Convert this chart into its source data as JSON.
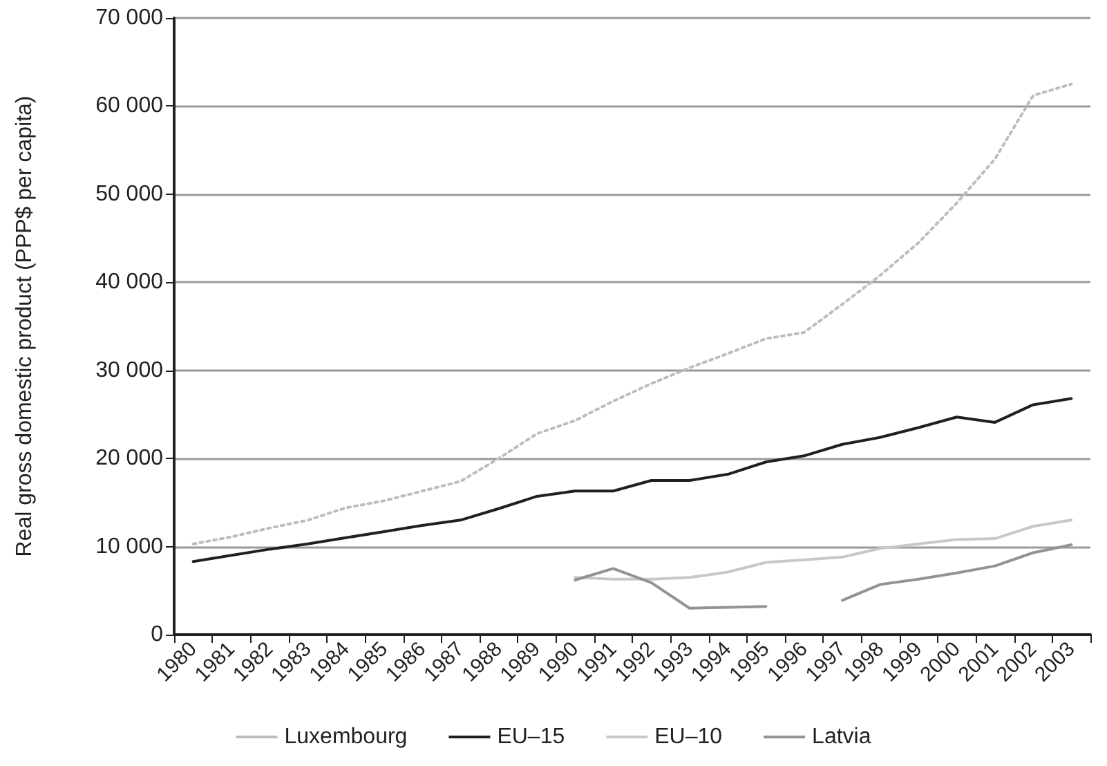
{
  "chart_data": {
    "type": "line",
    "ylabel": "Real gross domestic product (PPP$ per capita)",
    "categories": [
      "1980",
      "1981",
      "1982",
      "1983",
      "1984",
      "1985",
      "1986",
      "1987",
      "1988",
      "1989",
      "1990",
      "1991",
      "1992",
      "1993",
      "1994",
      "1995",
      "1996",
      "1997",
      "1998",
      "1999",
      "2000",
      "2001",
      "2002",
      "2003"
    ],
    "series": [
      {
        "name": "Luxembourg",
        "color": "#bdbdbd",
        "line_style": "dotted",
        "values": [
          10300,
          11100,
          12100,
          13000,
          14400,
          15200,
          16300,
          17400,
          20000,
          22800,
          24300,
          26500,
          28500,
          30300,
          31900,
          33600,
          34300,
          37500,
          40800,
          44500,
          49000,
          54000,
          61200,
          62500
        ]
      },
      {
        "name": "EU–15",
        "color": "#231f20",
        "line_style": "solid",
        "values": [
          8300,
          9000,
          9700,
          10300,
          11000,
          11700,
          12400,
          13000,
          14300,
          15700,
          16300,
          16300,
          17500,
          17500,
          18200,
          19600,
          20300,
          21600,
          22400,
          23500,
          24700,
          24100,
          26100,
          26800
        ]
      },
      {
        "name": "EU–10",
        "color": "#c8c8c8",
        "line_style": "solid",
        "values": [
          null,
          null,
          null,
          null,
          null,
          null,
          null,
          null,
          null,
          null,
          6500,
          6300,
          6300,
          6500,
          7100,
          8200,
          8500,
          8800,
          9800,
          10300,
          10800,
          10900,
          12300,
          13000
        ]
      },
      {
        "name": "Latvia",
        "color": "#939393",
        "line_style": "solid",
        "values": [
          null,
          null,
          null,
          null,
          null,
          null,
          null,
          null,
          null,
          null,
          6200,
          7500,
          5900,
          3000,
          3100,
          3200,
          null,
          3900,
          5700,
          6300,
          7000,
          7800,
          9300,
          10200
        ]
      }
    ],
    "ylim": [
      0,
      70000
    ],
    "yticks": [
      0,
      {
        "value": 10000,
        "label": "10 000"
      },
      {
        "value": 20000,
        "label": "20 000"
      },
      {
        "value": 30000,
        "label": "30 000"
      },
      {
        "value": 40000,
        "label": "40 000"
      },
      {
        "value": 50000,
        "label": "50 000"
      },
      {
        "value": 60000,
        "label": "60 000"
      },
      {
        "value": 70000,
        "label": "70 000"
      }
    ],
    "grid": "y",
    "legend": "bottom",
    "marker": "none"
  }
}
